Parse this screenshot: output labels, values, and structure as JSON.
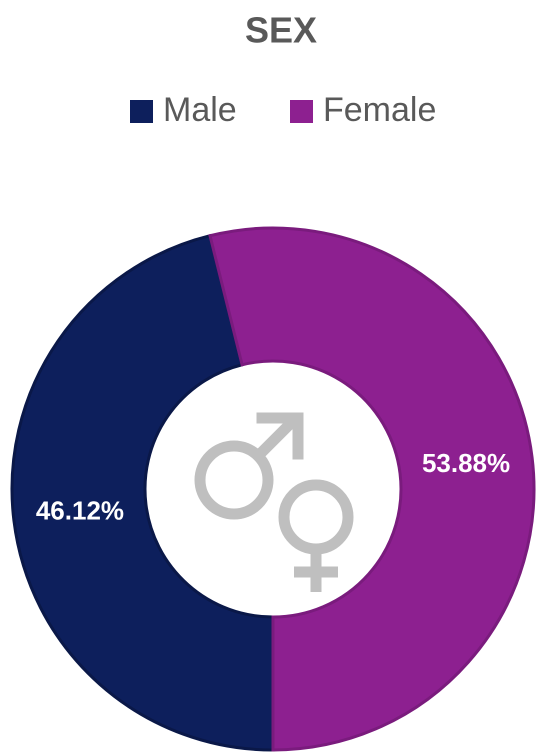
{
  "chart_data": {
    "type": "donut",
    "title": "SEX",
    "categories": [
      "Male",
      "Female"
    ],
    "series": [
      {
        "name": "Male",
        "color": "#0d1f5c"
      },
      {
        "name": "Female",
        "color": "#8d2090"
      }
    ],
    "values": [
      46.12,
      53.88
    ],
    "value_labels": [
      "46.12%",
      "53.88%"
    ],
    "legend": "top"
  }
}
